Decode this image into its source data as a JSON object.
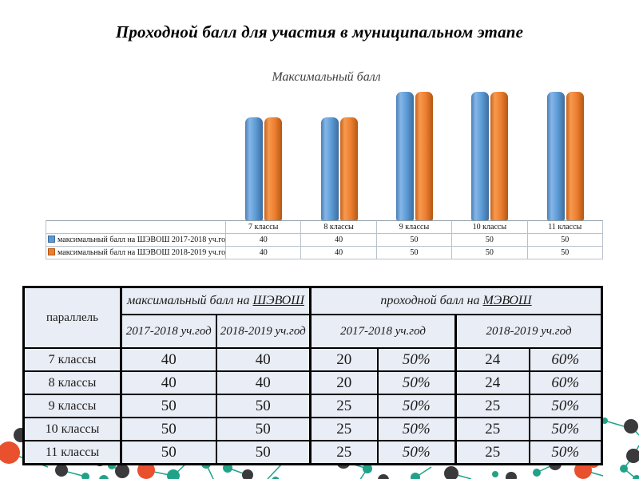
{
  "slide_title": "Проходной балл для участия в муниципальном этапе",
  "chart_data": {
    "type": "bar",
    "title": "Максимальный балл",
    "categories": [
      "7 классы",
      "8 классы",
      "9 классы",
      "10 классы",
      "11 классы"
    ],
    "series": [
      {
        "name": "максимальный балл на ШЭВОШ 2017-2018 уч.год",
        "color": "#5B9BD5",
        "values": [
          40,
          40,
          50,
          50,
          50
        ]
      },
      {
        "name": "максимальный балл на ШЭВОШ 2018-2019 уч.год",
        "color": "#ED7D31",
        "values": [
          40,
          40,
          50,
          50,
          50
        ]
      }
    ],
    "xlabel": "",
    "ylabel": "",
    "ylim": [
      0,
      50
    ],
    "grid": false,
    "legend_position": "left-of-data-table",
    "data_table_shown": true
  },
  "table": {
    "corner_header": "параллель",
    "groups": [
      {
        "prefix": "максимальный балл на ",
        "abbr": "ШЭВОШ"
      },
      {
        "prefix": "проходной балл на ",
        "abbr": "МЭВОШ"
      }
    ],
    "year_headers": [
      "2017-2018 уч.год",
      "2018-2019 уч.год",
      "2017-2018 уч.год",
      "2018-2019 уч.год"
    ],
    "rows": [
      {
        "label": "7 классы",
        "cells": [
          "40",
          "40",
          "20",
          "50%",
          "24",
          "60%"
        ]
      },
      {
        "label": "8 классы",
        "cells": [
          "40",
          "40",
          "20",
          "50%",
          "24",
          "60%"
        ]
      },
      {
        "label": "9 классы",
        "cells": [
          "50",
          "50",
          "25",
          "50%",
          "25",
          "50%"
        ]
      },
      {
        "label": "10 классы",
        "cells": [
          "50",
          "50",
          "25",
          "50%",
          "25",
          "50%"
        ]
      },
      {
        "label": "11 классы",
        "cells": [
          "50",
          "50",
          "25",
          "50%",
          "25",
          "50%"
        ]
      }
    ]
  },
  "colors": {
    "series1_blue": "#5B9BD5",
    "series2_orange": "#ED7D31",
    "table_cell_bg": "#E9EDF5",
    "table_border": "#000000",
    "decor_teal": "#21A288",
    "decor_orange": "#E8502E",
    "decor_dark": "#3A3A3C"
  }
}
